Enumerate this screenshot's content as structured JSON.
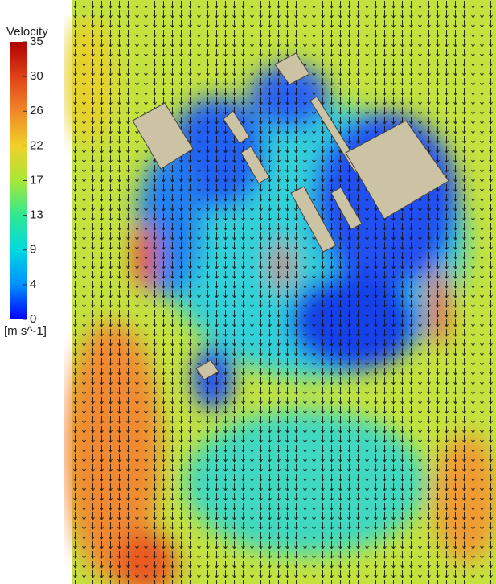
{
  "chart_data": {
    "type": "contour",
    "title": "Velocity",
    "unit_label": "[m s^-1]",
    "clim": [
      0,
      34.6
    ],
    "colormap": [
      "#0000ff",
      "#0090ff",
      "#00d8e0",
      "#30e890",
      "#a8e838",
      "#f0d028",
      "#f08828",
      "#e04018",
      "#b00000"
    ],
    "cticks": [
      0,
      {
        "value": 4.325,
        "label": "4"
      },
      {
        "value": 8.65,
        "label": "9"
      },
      {
        "value": 12.975,
        "label": "13"
      },
      {
        "value": 17.3,
        "label": "17"
      },
      {
        "value": 21.625,
        "label": "22"
      },
      {
        "value": 25.95,
        "label": "26"
      },
      {
        "value": 30.275,
        "label": "30"
      },
      {
        "value": 34.6,
        "label": "35"
      }
    ]
  }
}
